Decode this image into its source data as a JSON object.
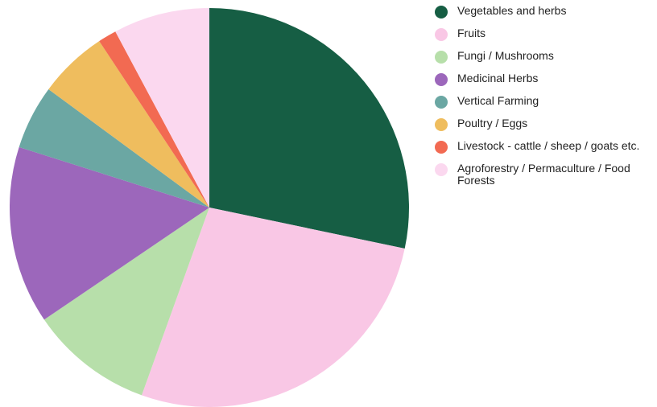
{
  "chart_data": {
    "type": "pie",
    "title": "",
    "legend_position": "right",
    "start_angle_deg": 0,
    "direction": "clockwise",
    "slices": [
      {
        "label": "Vegetables and herbs",
        "value": 28.3,
        "color": "#165e44"
      },
      {
        "label": "Fruits",
        "value": 27.2,
        "color": "#f9c7e5"
      },
      {
        "label": "Fungi / Mushrooms",
        "value": 10.0,
        "color": "#b7dfaa"
      },
      {
        "label": "Medicinal Herbs",
        "value": 14.4,
        "color": "#9c67bb"
      },
      {
        "label": "Vertical Farming",
        "value": 5.2,
        "color": "#6ba7a3"
      },
      {
        "label": "Poultry / Eggs",
        "value": 5.6,
        "color": "#efbd5e"
      },
      {
        "label": "Livestock - cattle / sheep / goats etc.",
        "value": 1.5,
        "color": "#f26a52"
      },
      {
        "label": "Agroforestry / Permaculture / Food Forests",
        "value": 7.8,
        "color": "#fbd8ef"
      }
    ]
  }
}
